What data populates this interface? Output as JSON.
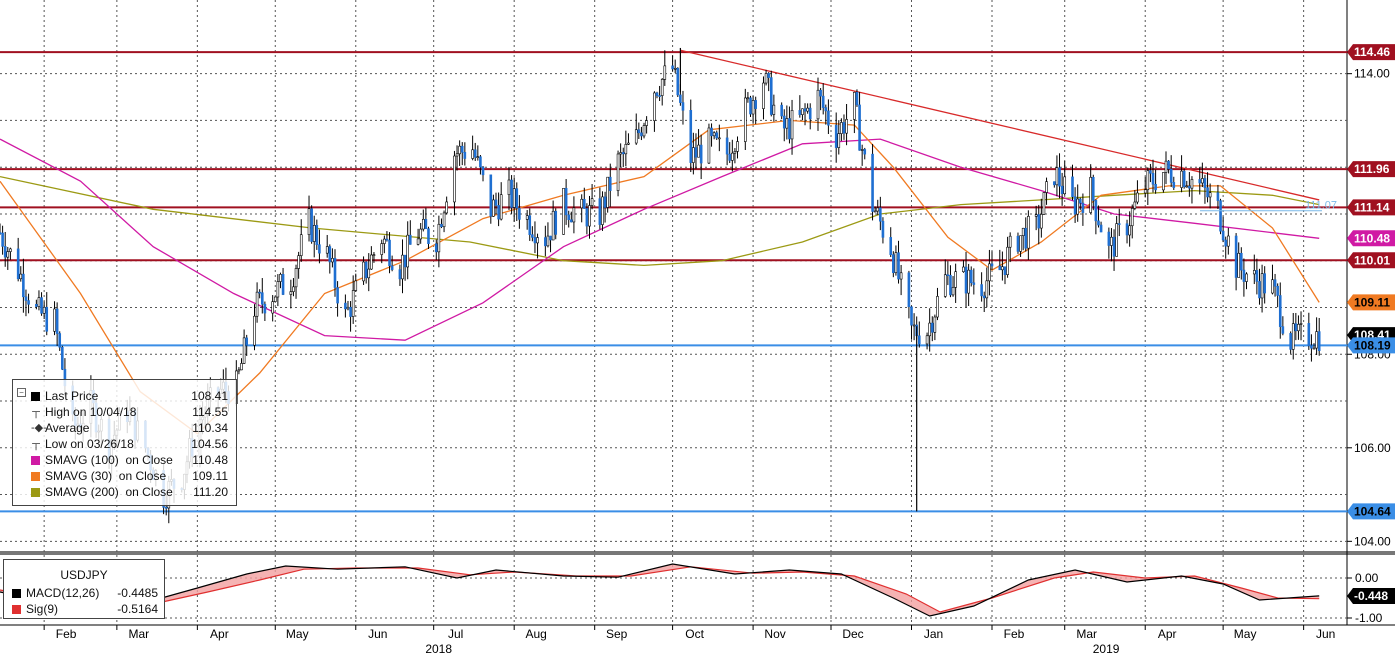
{
  "colors": {
    "candle": "#1f6fd1",
    "wick": "#000000",
    "grid": "#555555",
    "hline_red": "#a01020",
    "hline_blue": "#3a8ee6",
    "trendline": "#d82a2a",
    "sma100": "#d01aa4",
    "sma30": "#f07a22",
    "sma200": "#9c9a14",
    "macd": "#000000",
    "signal": "#e03030",
    "macd_fill": "#f2a0a0"
  },
  "chart_data": [
    {
      "type": "candlestick",
      "title": "",
      "symbol": "USDJPY",
      "x_range": [
        "2018-01-15",
        "2019-06-10"
      ],
      "ylim": [
        103.9,
        114.72
      ],
      "y_axis_position": "right",
      "grid": true,
      "y_ticks": [
        "104.00",
        "106.00",
        "108.00",
        "114.00"
      ],
      "x_month_ticks": [
        {
          "date": "2018-02-01",
          "label": "Feb"
        },
        {
          "date": "2018-03-01",
          "label": "Mar"
        },
        {
          "date": "2018-04-01",
          "label": "Apr"
        },
        {
          "date": "2018-05-01",
          "label": "May"
        },
        {
          "date": "2018-06-01",
          "label": "Jun"
        },
        {
          "date": "2018-07-01",
          "label": "Jul"
        },
        {
          "date": "2018-08-01",
          "label": "Aug"
        },
        {
          "date": "2018-09-01",
          "label": "Sep"
        },
        {
          "date": "2018-10-01",
          "label": "Oct"
        },
        {
          "date": "2018-11-01",
          "label": "Nov"
        },
        {
          "date": "2018-12-01",
          "label": "Dec"
        },
        {
          "date": "2019-01-01",
          "label": "Jan"
        },
        {
          "date": "2019-02-01",
          "label": "Feb"
        },
        {
          "date": "2019-03-01",
          "label": "Mar"
        },
        {
          "date": "2019-04-01",
          "label": "Apr"
        },
        {
          "date": "2019-05-01",
          "label": "May"
        },
        {
          "date": "2019-06-01",
          "label": "Jun"
        }
      ],
      "year_labels": [
        {
          "date": "2018-07-01",
          "label": "2018"
        },
        {
          "date": "2019-03-15",
          "label": "2019"
        }
      ],
      "price_path": [
        [
          "2018-01-15",
          110.6
        ],
        [
          "2018-01-22",
          109.8
        ],
        [
          "2018-01-29",
          108.9
        ],
        [
          "2018-02-05",
          108.7
        ],
        [
          "2018-02-12",
          106.4
        ],
        [
          "2018-02-19",
          106.9
        ],
        [
          "2018-02-26",
          106.1
        ],
        [
          "2018-03-05",
          106.8
        ],
        [
          "2018-03-12",
          106.0
        ],
        [
          "2018-03-19",
          105.0
        ],
        [
          "2018-03-26",
          105.4
        ],
        [
          "2018-04-02",
          106.6
        ],
        [
          "2018-04-09",
          107.2
        ],
        [
          "2018-04-16",
          107.3
        ],
        [
          "2018-04-23",
          109.0
        ],
        [
          "2018-04-30",
          109.3
        ],
        [
          "2018-05-07",
          109.6
        ],
        [
          "2018-05-14",
          110.8
        ],
        [
          "2018-05-21",
          110.1
        ],
        [
          "2018-05-28",
          108.8
        ],
        [
          "2018-06-04",
          109.7
        ],
        [
          "2018-06-11",
          110.5
        ],
        [
          "2018-06-18",
          109.9
        ],
        [
          "2018-06-25",
          110.6
        ],
        [
          "2018-07-02",
          110.5
        ],
        [
          "2018-07-09",
          112.3
        ],
        [
          "2018-07-16",
          112.4
        ],
        [
          "2018-07-23",
          111.1
        ],
        [
          "2018-07-30",
          111.4
        ],
        [
          "2018-08-06",
          110.9
        ],
        [
          "2018-08-13",
          110.5
        ],
        [
          "2018-08-20",
          111.2
        ],
        [
          "2018-08-27",
          111.0
        ],
        [
          "2018-09-03",
          111.0
        ],
        [
          "2018-09-10",
          112.1
        ],
        [
          "2018-09-17",
          112.6
        ],
        [
          "2018-09-24",
          113.7
        ],
        [
          "2018-10-01",
          114.1
        ],
        [
          "2018-10-08",
          112.2
        ],
        [
          "2018-10-15",
          112.5
        ],
        [
          "2018-10-22",
          112.3
        ],
        [
          "2018-10-29",
          113.2
        ],
        [
          "2018-11-05",
          113.9
        ],
        [
          "2018-11-12",
          112.8
        ],
        [
          "2018-11-19",
          113.0
        ],
        [
          "2018-11-26",
          113.5
        ],
        [
          "2018-12-03",
          112.7
        ],
        [
          "2018-12-10",
          113.3
        ],
        [
          "2018-12-17",
          111.2
        ],
        [
          "2018-12-24",
          110.3
        ],
        [
          "2019-01-01",
          108.5
        ],
        [
          "2019-01-07",
          108.5
        ],
        [
          "2019-01-14",
          109.6
        ],
        [
          "2019-01-21",
          109.6
        ],
        [
          "2019-01-28",
          109.5
        ],
        [
          "2019-02-04",
          109.8
        ],
        [
          "2019-02-11",
          110.5
        ],
        [
          "2019-02-18",
          110.7
        ],
        [
          "2019-02-25",
          111.9
        ],
        [
          "2019-03-04",
          111.2
        ],
        [
          "2019-03-11",
          111.5
        ],
        [
          "2019-03-18",
          110.2
        ],
        [
          "2019-03-25",
          110.8
        ],
        [
          "2019-04-01",
          111.6
        ],
        [
          "2019-04-08",
          111.9
        ],
        [
          "2019-04-15",
          111.9
        ],
        [
          "2019-04-22",
          111.6
        ],
        [
          "2019-04-29",
          111.1
        ],
        [
          "2019-05-06",
          109.9
        ],
        [
          "2019-05-13",
          109.6
        ],
        [
          "2019-05-20",
          109.4
        ],
        [
          "2019-05-27",
          108.3
        ],
        [
          "2019-06-03",
          108.4
        ],
        [
          "2019-06-07",
          108.41
        ]
      ],
      "notable_wicks": [
        {
          "date": "2019-01-03",
          "low": 104.64,
          "high": 108.6
        },
        {
          "date": "2018-10-04",
          "low": 113.6,
          "high": 114.55
        }
      ],
      "sma30": [
        [
          "2018-01-15",
          111.7
        ],
        [
          "2018-02-15",
          109.3
        ],
        [
          "2018-03-10",
          107.2
        ],
        [
          "2018-04-01",
          106.3
        ],
        [
          "2018-04-25",
          107.6
        ],
        [
          "2018-05-20",
          109.3
        ],
        [
          "2018-06-20",
          110.0
        ],
        [
          "2018-07-20",
          110.9
        ],
        [
          "2018-08-20",
          111.4
        ],
        [
          "2018-09-20",
          111.8
        ],
        [
          "2018-10-15",
          112.8
        ],
        [
          "2018-11-15",
          113.0
        ],
        [
          "2018-12-10",
          112.9
        ],
        [
          "2018-12-25",
          112.0
        ],
        [
          "2019-01-15",
          110.5
        ],
        [
          "2019-02-01",
          109.8
        ],
        [
          "2019-02-20",
          110.4
        ],
        [
          "2019-03-15",
          111.4
        ],
        [
          "2019-04-10",
          111.6
        ],
        [
          "2019-04-30",
          111.6
        ],
        [
          "2019-05-20",
          110.7
        ],
        [
          "2019-06-07",
          109.11
        ]
      ],
      "sma100": [
        [
          "2018-01-15",
          112.6
        ],
        [
          "2018-02-15",
          111.7
        ],
        [
          "2018-03-15",
          110.3
        ],
        [
          "2018-04-15",
          109.3
        ],
        [
          "2018-05-20",
          108.4
        ],
        [
          "2018-06-20",
          108.3
        ],
        [
          "2018-07-20",
          109.1
        ],
        [
          "2018-08-20",
          110.3
        ],
        [
          "2018-09-20",
          111.1
        ],
        [
          "2018-10-20",
          111.8
        ],
        [
          "2018-11-20",
          112.5
        ],
        [
          "2018-12-20",
          112.6
        ],
        [
          "2019-01-20",
          112.0
        ],
        [
          "2019-02-20",
          111.5
        ],
        [
          "2019-03-20",
          111.0
        ],
        [
          "2019-04-20",
          110.8
        ],
        [
          "2019-05-20",
          110.6
        ],
        [
          "2019-06-07",
          110.48
        ]
      ],
      "sma200": [
        [
          "2018-01-15",
          111.8
        ],
        [
          "2018-03-15",
          111.1
        ],
        [
          "2018-05-15",
          110.7
        ],
        [
          "2018-07-15",
          110.4
        ],
        [
          "2018-08-20",
          110.0
        ],
        [
          "2018-09-20",
          109.9
        ],
        [
          "2018-10-20",
          110.0
        ],
        [
          "2018-11-20",
          110.4
        ],
        [
          "2018-12-20",
          111.0
        ],
        [
          "2019-01-20",
          111.2
        ],
        [
          "2019-02-20",
          111.3
        ],
        [
          "2019-03-20",
          111.4
        ],
        [
          "2019-04-20",
          111.5
        ],
        [
          "2019-05-20",
          111.4
        ],
        [
          "2019-06-07",
          111.2
        ]
      ],
      "trendline": [
        [
          "2018-10-04",
          114.5
        ],
        [
          "2019-06-07",
          111.3
        ]
      ],
      "horizontal_levels": [
        {
          "value": 114.46,
          "label": "114.46",
          "color": "red"
        },
        {
          "value": 111.96,
          "label": "111.96",
          "color": "red"
        },
        {
          "value": 111.14,
          "label": "111.14",
          "color": "red"
        },
        {
          "value": 110.01,
          "label": "110.01",
          "color": "red"
        },
        {
          "value": 108.19,
          "label": "108.19",
          "color": "blue"
        },
        {
          "value": 104.64,
          "label": "104.64",
          "color": "blue"
        }
      ],
      "right_tags": [
        {
          "value": 114.46,
          "label": "114.46",
          "bg": "#a01020",
          "fg": "#ffffff"
        },
        {
          "value": 111.96,
          "label": "111.96",
          "bg": "#a01020",
          "fg": "#ffffff"
        },
        {
          "value": 111.14,
          "label": "111.14",
          "bg": "#a01020",
          "fg": "#ffffff"
        },
        {
          "value": 110.48,
          "label": "110.48",
          "bg": "#d01aa4",
          "fg": "#ffffff"
        },
        {
          "value": 110.01,
          "label": "110.01",
          "bg": "#a01020",
          "fg": "#ffffff"
        },
        {
          "value": 109.11,
          "label": "109.11",
          "bg": "#f07a22",
          "fg": "#000000"
        },
        {
          "value": 108.41,
          "label": "108.41",
          "bg": "#000000",
          "fg": "#ffffff"
        },
        {
          "value": 108.19,
          "label": "108.19",
          "bg": "#3a8ee6",
          "fg": "#000000"
        },
        {
          "value": 104.64,
          "label": "104.64",
          "bg": "#3a8ee6",
          "fg": "#000000"
        }
      ],
      "inline_label": {
        "value": 111.07,
        "label": "111.07"
      }
    },
    {
      "type": "line",
      "title": "USDJPY",
      "ylim": [
        -1.05,
        0.45
      ],
      "y_ticks": [
        "0.00",
        "-1.00"
      ],
      "series": [
        {
          "name": "MACD(12,26)",
          "value_label": "-0.4485",
          "points": [
            [
              "2018-01-15",
              -0.35
            ],
            [
              "2018-02-15",
              -0.75
            ],
            [
              "2018-03-10",
              -0.65
            ],
            [
              "2018-04-01",
              -0.25
            ],
            [
              "2018-04-20",
              0.1
            ],
            [
              "2018-05-05",
              0.3
            ],
            [
              "2018-05-25",
              0.22
            ],
            [
              "2018-06-20",
              0.28
            ],
            [
              "2018-07-10",
              0.0
            ],
            [
              "2018-07-25",
              0.2
            ],
            [
              "2018-08-20",
              0.05
            ],
            [
              "2018-09-10",
              0.02
            ],
            [
              "2018-10-01",
              0.35
            ],
            [
              "2018-10-25",
              0.1
            ],
            [
              "2018-11-15",
              0.2
            ],
            [
              "2018-12-05",
              0.1
            ],
            [
              "2018-12-25",
              -0.5
            ],
            [
              "2019-01-08",
              -0.95
            ],
            [
              "2019-01-25",
              -0.7
            ],
            [
              "2019-02-15",
              -0.05
            ],
            [
              "2019-03-05",
              0.2
            ],
            [
              "2019-03-25",
              -0.1
            ],
            [
              "2019-04-15",
              0.05
            ],
            [
              "2019-05-01",
              -0.15
            ],
            [
              "2019-05-15",
              -0.55
            ],
            [
              "2019-06-07",
              -0.4485
            ]
          ]
        },
        {
          "name": "Sig(9)",
          "value_label": "-0.5164",
          "points": [
            [
              "2018-01-15",
              -0.3
            ],
            [
              "2018-02-20",
              -0.7
            ],
            [
              "2018-03-15",
              -0.65
            ],
            [
              "2018-04-05",
              -0.35
            ],
            [
              "2018-04-25",
              -0.05
            ],
            [
              "2018-05-12",
              0.22
            ],
            [
              "2018-06-01",
              0.25
            ],
            [
              "2018-06-25",
              0.25
            ],
            [
              "2018-07-15",
              0.08
            ],
            [
              "2018-08-01",
              0.15
            ],
            [
              "2018-08-25",
              0.05
            ],
            [
              "2018-09-15",
              0.05
            ],
            [
              "2018-10-08",
              0.28
            ],
            [
              "2018-11-01",
              0.12
            ],
            [
              "2018-11-20",
              0.15
            ],
            [
              "2018-12-10",
              0.05
            ],
            [
              "2018-12-30",
              -0.4
            ],
            [
              "2019-01-12",
              -0.85
            ],
            [
              "2019-02-01",
              -0.5
            ],
            [
              "2019-02-25",
              0.0
            ],
            [
              "2019-03-12",
              0.15
            ],
            [
              "2019-04-01",
              0.0
            ],
            [
              "2019-04-20",
              0.05
            ],
            [
              "2019-05-08",
              -0.25
            ],
            [
              "2019-05-22",
              -0.5
            ],
            [
              "2019-06-07",
              -0.5164
            ]
          ]
        }
      ],
      "right_tags": [
        {
          "value": -0.4485,
          "label": "-0.448",
          "bg": "#000000",
          "fg": "#ffffff"
        }
      ]
    }
  ],
  "legend": {
    "entries": [
      {
        "glyph": "square",
        "color": "#000000",
        "label": "Last Price",
        "value": "108.41"
      },
      {
        "glyph": "high",
        "label": "High on 10/04/18",
        "value": "114.55"
      },
      {
        "glyph": "avg",
        "label": "Average",
        "value": "110.34"
      },
      {
        "glyph": "low",
        "label": "Low on 03/26/18",
        "value": "104.56"
      },
      {
        "glyph": "square",
        "color": "#d01aa4",
        "label": "SMAVG (100)  on Close",
        "value": "110.48"
      },
      {
        "glyph": "square",
        "color": "#f07a22",
        "label": "SMAVG (30)  on Close",
        "value": "109.11"
      },
      {
        "glyph": "square",
        "color": "#9c9a14",
        "label": "SMAVG (200)  on Close",
        "value": "111.20"
      }
    ]
  },
  "macd_legend": {
    "title": "USDJPY",
    "entries": [
      {
        "color": "#000000",
        "label": "MACD(12,26)",
        "value": "-0.4485"
      },
      {
        "color": "#e03030",
        "label": "Sig(9)",
        "value": "-0.5164"
      }
    ]
  }
}
